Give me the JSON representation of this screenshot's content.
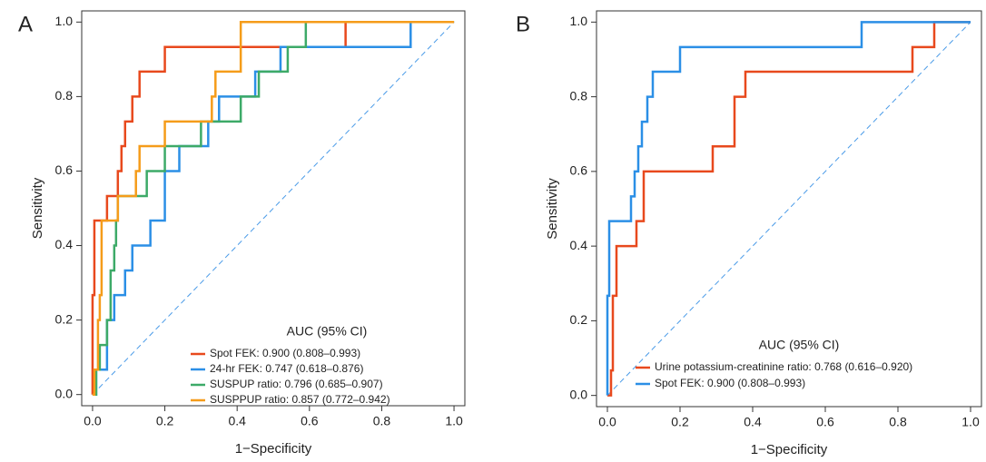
{
  "chart_data": [
    {
      "type": "line",
      "panel_label": "A",
      "xlabel": "1−Specificity",
      "ylabel": "Sensitivity",
      "xlim": [
        -0.03,
        1.03
      ],
      "ylim": [
        -0.03,
        1.03
      ],
      "xticks": [
        {
          "value": 0,
          "label": "0.0"
        },
        0.2,
        0.4,
        0.6,
        0.8,
        {
          "value": 1,
          "label": "1.0"
        }
      ],
      "yticks": [
        {
          "value": 0,
          "label": "0.0"
        },
        0.2,
        0.4,
        0.6,
        0.8,
        {
          "value": 1,
          "label": "1.0"
        }
      ],
      "legend_title": "AUC (95% CI)",
      "legend": "lower right",
      "series": [
        {
          "name": "Spot FEK: 0.900 (0.808–0.993)",
          "color": "#e8491d",
          "x": [
            0,
            0,
            0.005,
            0.005,
            0.04,
            0.04,
            0.07,
            0.07,
            0.08,
            0.08,
            0.09,
            0.09,
            0.11,
            0.11,
            0.13,
            0.13,
            0.2,
            0.2,
            0.7,
            0.7,
            1
          ],
          "values": [
            0,
            0.267,
            0.267,
            0.467,
            0.467,
            0.533,
            0.533,
            0.6,
            0.6,
            0.667,
            0.667,
            0.733,
            0.733,
            0.8,
            0.8,
            0.867,
            0.867,
            0.933,
            0.933,
            1,
            1
          ]
        },
        {
          "name": "24-hr FEK: 0.747 (0.618–0.876)",
          "color": "#2b8fe6",
          "x": [
            0,
            0.01,
            0.01,
            0.04,
            0.04,
            0.06,
            0.06,
            0.09,
            0.09,
            0.11,
            0.11,
            0.16,
            0.16,
            0.2,
            0.2,
            0.24,
            0.24,
            0.32,
            0.32,
            0.35,
            0.35,
            0.45,
            0.45,
            0.52,
            0.52,
            0.88,
            0.88,
            1
          ],
          "values": [
            0,
            0,
            0.067,
            0.067,
            0.2,
            0.2,
            0.267,
            0.267,
            0.333,
            0.333,
            0.4,
            0.4,
            0.467,
            0.467,
            0.6,
            0.6,
            0.667,
            0.667,
            0.733,
            0.733,
            0.8,
            0.8,
            0.867,
            0.867,
            0.933,
            0.933,
            1,
            1
          ]
        },
        {
          "name": "SUSPUP ratio: 0.796 (0.685–0.907)",
          "color": "#3daa68",
          "x": [
            0,
            0.01,
            0.01,
            0.02,
            0.02,
            0.04,
            0.04,
            0.05,
            0.05,
            0.06,
            0.06,
            0.065,
            0.065,
            0.07,
            0.07,
            0.15,
            0.15,
            0.2,
            0.2,
            0.3,
            0.3,
            0.41,
            0.41,
            0.46,
            0.46,
            0.54,
            0.54,
            0.59,
            0.59,
            1
          ],
          "values": [
            0,
            0,
            0.067,
            0.067,
            0.133,
            0.133,
            0.2,
            0.2,
            0.333,
            0.333,
            0.4,
            0.4,
            0.467,
            0.467,
            0.533,
            0.533,
            0.6,
            0.6,
            0.667,
            0.667,
            0.733,
            0.733,
            0.8,
            0.8,
            0.867,
            0.867,
            0.933,
            0.933,
            1,
            1
          ]
        },
        {
          "name": "SUSPPUP ratio: 0.857 (0.772–0.942)",
          "color": "#f59c1a",
          "x": [
            0,
            0.005,
            0.005,
            0.015,
            0.015,
            0.02,
            0.02,
            0.025,
            0.025,
            0.07,
            0.07,
            0.12,
            0.12,
            0.13,
            0.13,
            0.2,
            0.2,
            0.33,
            0.33,
            0.34,
            0.34,
            0.41,
            0.41,
            1
          ],
          "values": [
            0,
            0,
            0.067,
            0.067,
            0.2,
            0.2,
            0.267,
            0.267,
            0.467,
            0.467,
            0.533,
            0.533,
            0.6,
            0.6,
            0.667,
            0.667,
            0.733,
            0.733,
            0.8,
            0.8,
            0.867,
            0.867,
            1,
            1
          ]
        }
      ]
    },
    {
      "type": "line",
      "panel_label": "B",
      "xlabel": "1−Specificity",
      "ylabel": "Sensitivity",
      "xlim": [
        -0.03,
        1.03
      ],
      "ylim": [
        -0.03,
        1.03
      ],
      "xticks": [
        {
          "value": 0,
          "label": "0.0"
        },
        0.2,
        0.4,
        0.6,
        0.8,
        {
          "value": 1,
          "label": "1.0"
        }
      ],
      "yticks": [
        {
          "value": 0,
          "label": "0.0"
        },
        0.2,
        0.4,
        0.6,
        0.8,
        {
          "value": 1,
          "label": "1.0"
        }
      ],
      "legend_title": "AUC (95% CI)",
      "legend": "lower right",
      "series": [
        {
          "name": "Urine potassium-creatinine ratio: 0.768 (0.616–0.920)",
          "color": "#e8491d",
          "x": [
            0,
            0.01,
            0.01,
            0.015,
            0.015,
            0.025,
            0.025,
            0.08,
            0.08,
            0.1,
            0.1,
            0.29,
            0.29,
            0.35,
            0.35,
            0.38,
            0.38,
            0.84,
            0.84,
            0.9,
            0.9,
            1
          ],
          "values": [
            0,
            0,
            0.067,
            0.067,
            0.267,
            0.267,
            0.4,
            0.4,
            0.467,
            0.467,
            0.6,
            0.6,
            0.667,
            0.667,
            0.8,
            0.8,
            0.867,
            0.867,
            0.933,
            0.933,
            1,
            1
          ]
        },
        {
          "name": "Spot FEK: 0.900 (0.808–0.993)",
          "color": "#2b8fe6",
          "x": [
            0,
            0,
            0.005,
            0.005,
            0.065,
            0.065,
            0.075,
            0.075,
            0.085,
            0.085,
            0.095,
            0.095,
            0.11,
            0.11,
            0.125,
            0.125,
            0.2,
            0.2,
            0.7,
            0.7,
            1
          ],
          "values": [
            0,
            0.267,
            0.267,
            0.467,
            0.467,
            0.533,
            0.533,
            0.6,
            0.6,
            0.667,
            0.667,
            0.733,
            0.733,
            0.8,
            0.8,
            0.867,
            0.867,
            0.933,
            0.933,
            1,
            1
          ]
        }
      ]
    }
  ]
}
